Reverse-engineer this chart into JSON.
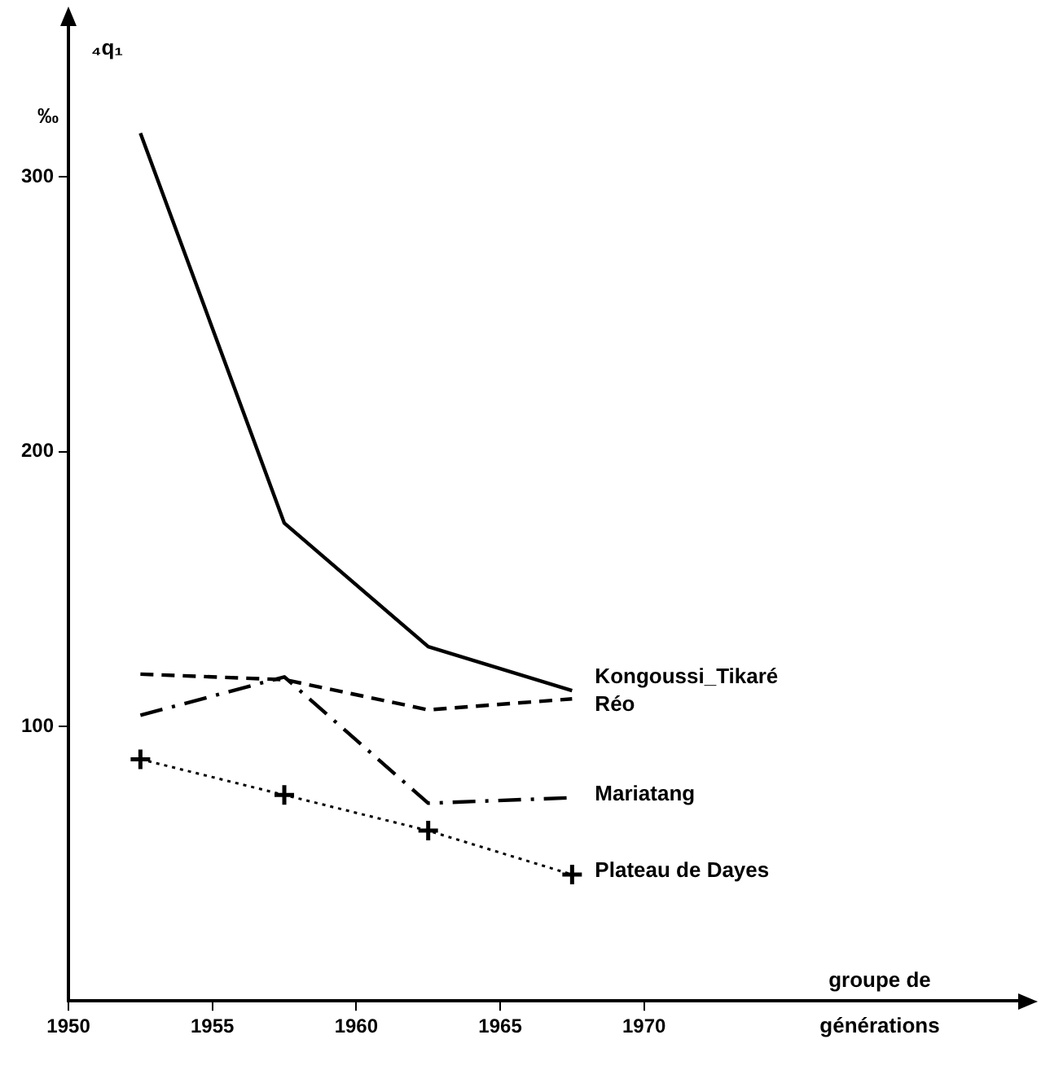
{
  "chart_data": {
    "type": "line",
    "ylabel": "₄q₁",
    "xlabel": "groupe de générations",
    "annotations": [
      "‰"
    ],
    "series": [
      {
        "name": "Kongoussi_Tikaré",
        "color": "#000000",
        "line_style": "solid",
        "x": [
          1952.5,
          1957.5,
          1962.5,
          1967.5
        ],
        "values": [
          316,
          174,
          129,
          113
        ]
      },
      {
        "name": "Réo",
        "color": "#000000",
        "line_style": "dashed",
        "x": [
          1952.5,
          1957.5,
          1962.5,
          1967.5
        ],
        "values": [
          119,
          117,
          106,
          110
        ]
      },
      {
        "name": "Mariatang",
        "color": "#000000",
        "line_style": "dashdot",
        "x": [
          1952.5,
          1957.5,
          1962.5,
          1967.5
        ],
        "values": [
          104,
          118,
          72,
          74
        ]
      },
      {
        "name": "Plateau de Dayes",
        "color": "#000000",
        "line_style": "dotted",
        "marker": "cross",
        "x": [
          1952.5,
          1957.5,
          1962.5,
          1967.5
        ],
        "values": [
          88,
          75,
          62,
          46
        ]
      }
    ],
    "xlim": [
      1950,
      1983
    ],
    "xticks": [
      1950,
      1955,
      1960,
      1965,
      1970
    ],
    "ylim": [
      0,
      355
    ],
    "yticks": [
      100,
      200,
      300
    ],
    "grid": false,
    "legend": false,
    "marker": "none"
  }
}
